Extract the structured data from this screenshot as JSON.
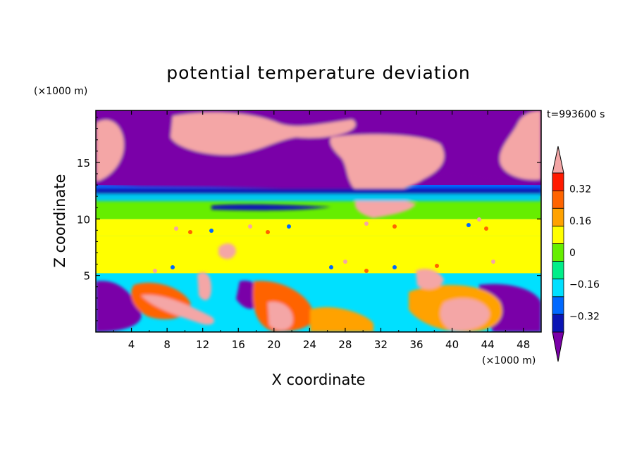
{
  "chart_data": {
    "type": "heatmap",
    "title": "potential temperature deviation",
    "time_label": "t=993600 s",
    "xlabel": "X coordinate",
    "ylabel": "Z coordinate",
    "x_unit": "(×1000 m)",
    "y_unit": "(×1000 m)",
    "xlim": [
      0,
      50
    ],
    "ylim": [
      0,
      19.6
    ],
    "x_ticks": [
      4,
      8,
      12,
      16,
      20,
      24,
      28,
      32,
      36,
      40,
      44,
      48
    ],
    "x_tick_labels": [
      "4",
      "8",
      "12",
      "16",
      "20",
      "24",
      "28",
      "32",
      "36",
      "40",
      "44",
      "48"
    ],
    "y_ticks": [
      5,
      10,
      15
    ],
    "y_tick_labels": [
      "5",
      "10",
      "15"
    ],
    "colorbar": {
      "levels": [
        -0.4,
        -0.32,
        -0.24,
        -0.16,
        -0.08,
        0,
        0.08,
        0.16,
        0.24,
        0.32,
        0.4
      ],
      "labels": [
        "0.32",
        "0.16",
        "0",
        "−0.16",
        "−0.32"
      ],
      "label_values": [
        0.32,
        0.16,
        0,
        -0.16,
        -0.32
      ],
      "colors": [
        "#7a00a8",
        "#0a14b4",
        "#0068ff",
        "#00e0ff",
        "#00ee88",
        "#66ee00",
        "#ffff00",
        "#ffa200",
        "#ff6400",
        "#ff1a00",
        "#f4a6a6"
      ]
    },
    "field_layers": [
      {
        "z_range": [
          0,
          5.2
        ],
        "description_value": "mixed convective layer, values -0.4 to 0.4"
      },
      {
        "z_range": [
          5.2,
          8.5
        ],
        "value": 0.02
      },
      {
        "z_range": [
          8.5,
          10
        ],
        "value": 0.05
      },
      {
        "z_range": [
          10,
          12
        ],
        "value": -0.08
      },
      {
        "z_range": [
          12,
          13
        ],
        "value": -0.3
      },
      {
        "z_range": [
          13,
          19.6
        ],
        "value": -0.45
      }
    ]
  }
}
